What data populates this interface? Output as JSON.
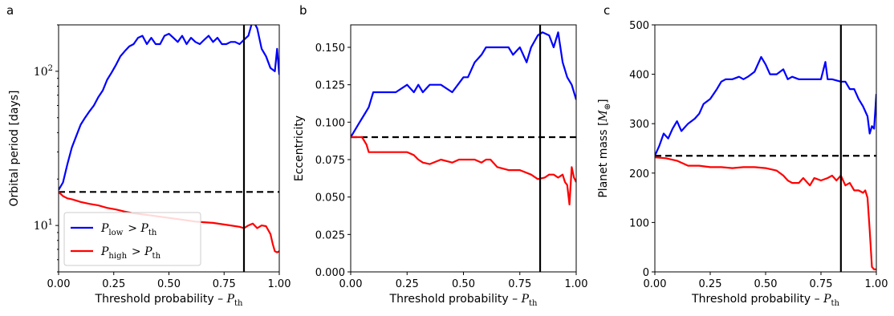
{
  "colors": {
    "low": "#0000ff",
    "high": "#ff0000",
    "baseline": "#000000",
    "threshold": "#000000"
  },
  "chart_data": [
    {
      "panel": "a",
      "type": "line",
      "xlabel": "Threshold probability – P_th",
      "ylabel": "Orbital period [days]",
      "xlim": [
        0,
        1
      ],
      "ylim": [
        5,
        200
      ],
      "yscale": "log",
      "xticks": [
        "0.00",
        "0.25",
        "0.50",
        "0.75",
        "1.00"
      ],
      "yticks": [
        "10^1",
        "10^2"
      ],
      "hline": 16.5,
      "vline": 0.84,
      "legend": {
        "position": "lower-left",
        "entries": [
          "P_low > P_th",
          "P_high > P_th"
        ]
      },
      "series": [
        {
          "name": "P_low > P_th",
          "x": [
            0,
            0.02,
            0.04,
            0.06,
            0.08,
            0.1,
            0.12,
            0.14,
            0.16,
            0.18,
            0.2,
            0.22,
            0.24,
            0.26,
            0.28,
            0.3,
            0.32,
            0.34,
            0.36,
            0.38,
            0.4,
            0.42,
            0.44,
            0.46,
            0.48,
            0.5,
            0.52,
            0.54,
            0.56,
            0.58,
            0.6,
            0.62,
            0.64,
            0.66,
            0.68,
            0.7,
            0.72,
            0.74,
            0.76,
            0.78,
            0.8,
            0.82,
            0.84,
            0.86,
            0.88,
            0.9,
            0.92,
            0.94,
            0.96,
            0.98,
            0.99,
            1.0
          ],
          "y": [
            17,
            19,
            25,
            32,
            38,
            45,
            50,
            55,
            60,
            68,
            75,
            88,
            98,
            110,
            125,
            135,
            145,
            150,
            165,
            170,
            150,
            165,
            150,
            150,
            170,
            175,
            165,
            155,
            170,
            150,
            165,
            155,
            150,
            160,
            170,
            155,
            165,
            150,
            150,
            155,
            155,
            150,
            160,
            170,
            215,
            190,
            140,
            125,
            105,
            100,
            140,
            95
          ]
        },
        {
          "name": "P_high > P_th",
          "x": [
            0,
            0.02,
            0.04,
            0.06,
            0.08,
            0.1,
            0.14,
            0.18,
            0.22,
            0.26,
            0.3,
            0.34,
            0.38,
            0.42,
            0.46,
            0.5,
            0.54,
            0.58,
            0.62,
            0.66,
            0.7,
            0.74,
            0.78,
            0.82,
            0.84,
            0.86,
            0.88,
            0.9,
            0.92,
            0.94,
            0.96,
            0.97,
            0.98,
            0.99,
            1.0
          ],
          "y": [
            16.5,
            15.5,
            15.0,
            14.8,
            14.5,
            14.2,
            13.8,
            13.5,
            13.0,
            12.7,
            12.3,
            12.0,
            11.8,
            11.6,
            11.4,
            11.2,
            11.0,
            10.8,
            10.6,
            10.5,
            10.4,
            10.2,
            10.0,
            9.8,
            9.6,
            10.0,
            10.3,
            9.6,
            10.0,
            9.9,
            8.8,
            7.6,
            6.8,
            6.7,
            6.8
          ]
        }
      ]
    },
    {
      "panel": "b",
      "type": "line",
      "xlabel": "Threshold probability – P_th",
      "ylabel": "Eccentricity",
      "xlim": [
        0,
        1
      ],
      "ylim": [
        0,
        0.165
      ],
      "xticks": [
        "0.00",
        "0.25",
        "0.50",
        "0.75",
        "1.00"
      ],
      "yticks": [
        "0.000",
        "0.025",
        "0.050",
        "0.075",
        "0.100",
        "0.125",
        "0.150"
      ],
      "hline": 0.09,
      "vline": 0.84,
      "series": [
        {
          "name": "P_low > P_th",
          "x": [
            0,
            0.02,
            0.04,
            0.06,
            0.08,
            0.1,
            0.15,
            0.2,
            0.25,
            0.28,
            0.3,
            0.32,
            0.35,
            0.4,
            0.45,
            0.5,
            0.52,
            0.55,
            0.58,
            0.6,
            0.65,
            0.7,
            0.72,
            0.75,
            0.78,
            0.8,
            0.83,
            0.85,
            0.88,
            0.9,
            0.92,
            0.94,
            0.96,
            0.98,
            1.0
          ],
          "y": [
            0.09,
            0.095,
            0.1,
            0.105,
            0.11,
            0.12,
            0.12,
            0.12,
            0.125,
            0.12,
            0.125,
            0.12,
            0.125,
            0.125,
            0.12,
            0.13,
            0.13,
            0.14,
            0.145,
            0.15,
            0.15,
            0.15,
            0.145,
            0.15,
            0.14,
            0.15,
            0.158,
            0.16,
            0.158,
            0.15,
            0.16,
            0.14,
            0.13,
            0.125,
            0.115
          ]
        },
        {
          "name": "P_high > P_th",
          "x": [
            0,
            0.02,
            0.05,
            0.07,
            0.08,
            0.1,
            0.15,
            0.2,
            0.25,
            0.28,
            0.3,
            0.32,
            0.35,
            0.4,
            0.45,
            0.48,
            0.5,
            0.55,
            0.58,
            0.6,
            0.62,
            0.65,
            0.7,
            0.75,
            0.8,
            0.83,
            0.86,
            0.88,
            0.9,
            0.92,
            0.94,
            0.95,
            0.96,
            0.97,
            0.98,
            0.99,
            1.0
          ],
          "y": [
            0.09,
            0.09,
            0.09,
            0.085,
            0.08,
            0.08,
            0.08,
            0.08,
            0.08,
            0.078,
            0.075,
            0.073,
            0.072,
            0.075,
            0.073,
            0.075,
            0.075,
            0.075,
            0.073,
            0.075,
            0.075,
            0.07,
            0.068,
            0.068,
            0.065,
            0.062,
            0.063,
            0.065,
            0.065,
            0.063,
            0.065,
            0.06,
            0.058,
            0.045,
            0.07,
            0.063,
            0.06
          ]
        }
      ]
    },
    {
      "panel": "c",
      "type": "line",
      "xlabel": "Threshold probability – P_th",
      "ylabel": "Planet mass [M_⊕]",
      "xlim": [
        0,
        1
      ],
      "ylim": [
        0,
        500
      ],
      "xticks": [
        "0.00",
        "0.25",
        "0.50",
        "0.75",
        "1.00"
      ],
      "yticks": [
        "0",
        "100",
        "200",
        "300",
        "400",
        "500"
      ],
      "hline": 235,
      "vline": 0.84,
      "series": [
        {
          "name": "P_low > P_th",
          "x": [
            0,
            0.02,
            0.04,
            0.06,
            0.08,
            0.1,
            0.12,
            0.15,
            0.18,
            0.2,
            0.22,
            0.25,
            0.28,
            0.3,
            0.32,
            0.35,
            0.38,
            0.4,
            0.42,
            0.45,
            0.48,
            0.5,
            0.52,
            0.55,
            0.58,
            0.6,
            0.62,
            0.65,
            0.7,
            0.75,
            0.77,
            0.78,
            0.8,
            0.84,
            0.86,
            0.88,
            0.9,
            0.92,
            0.94,
            0.96,
            0.97,
            0.98,
            0.99,
            1.0
          ],
          "y": [
            235,
            255,
            280,
            270,
            290,
            305,
            285,
            300,
            310,
            320,
            340,
            350,
            370,
            385,
            390,
            390,
            395,
            390,
            395,
            405,
            435,
            420,
            400,
            400,
            410,
            390,
            395,
            390,
            390,
            390,
            425,
            390,
            390,
            385,
            385,
            370,
            370,
            350,
            335,
            315,
            280,
            295,
            290,
            360
          ]
        },
        {
          "name": "P_high > P_th",
          "x": [
            0,
            0.05,
            0.1,
            0.15,
            0.2,
            0.25,
            0.3,
            0.35,
            0.4,
            0.45,
            0.5,
            0.55,
            0.58,
            0.6,
            0.62,
            0.65,
            0.67,
            0.7,
            0.72,
            0.75,
            0.78,
            0.8,
            0.82,
            0.84,
            0.86,
            0.88,
            0.9,
            0.92,
            0.94,
            0.95,
            0.96,
            0.97,
            0.98,
            0.99,
            1.0
          ],
          "y": [
            232,
            230,
            225,
            215,
            215,
            212,
            212,
            210,
            212,
            212,
            210,
            205,
            195,
            185,
            180,
            180,
            190,
            175,
            190,
            185,
            190,
            195,
            185,
            195,
            175,
            180,
            165,
            165,
            160,
            165,
            150,
            85,
            10,
            5,
            5
          ]
        }
      ]
    }
  ]
}
